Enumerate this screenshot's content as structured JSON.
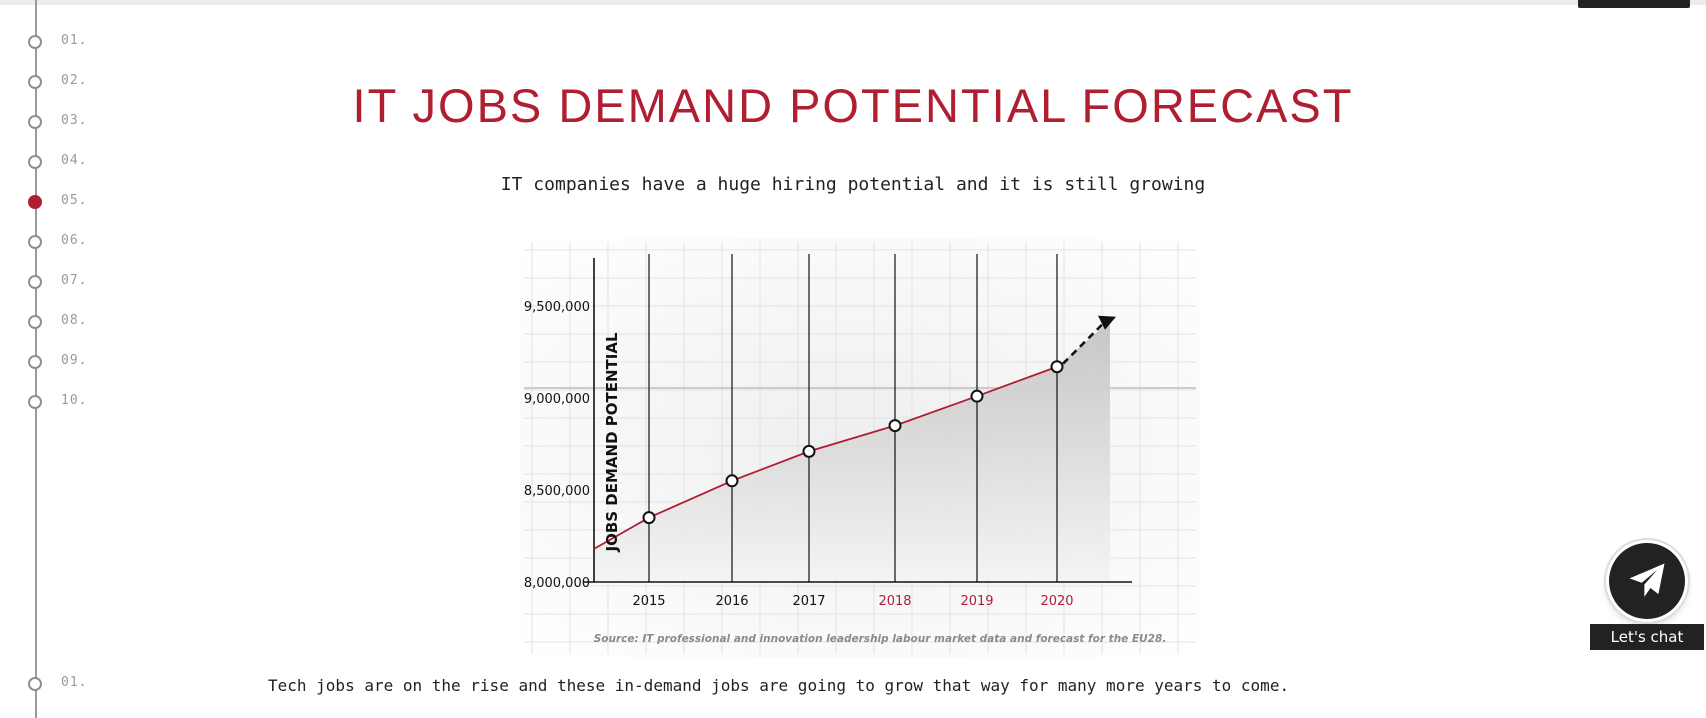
{
  "nav": {
    "items": [
      {
        "label": "01.",
        "active": false
      },
      {
        "label": "02.",
        "active": false
      },
      {
        "label": "03.",
        "active": false
      },
      {
        "label": "04.",
        "active": false
      },
      {
        "label": "05.",
        "active": true
      },
      {
        "label": "06.",
        "active": false
      },
      {
        "label": "07.",
        "active": false
      },
      {
        "label": "08.",
        "active": false
      },
      {
        "label": "09.",
        "active": false
      },
      {
        "label": "10.",
        "active": false
      }
    ],
    "next_section_label": "01."
  },
  "title": "IT JOBS DEMAND POTENTIAL FORECAST",
  "subtitle": "IT companies have a huge hiring potential and it is still growing",
  "body_text": "Tech jobs are on the rise and these in-demand jobs are going to grow that way for many more years to come.",
  "chat": {
    "label": "Let's chat",
    "icon": "paper-plane-icon"
  },
  "colors": {
    "accent": "#b01e32",
    "dark": "#222222",
    "muted": "#9a9a9a"
  },
  "chart_data": {
    "type": "line",
    "ylabel": "JOBS DEMAND POTENTIAL",
    "source": "Source: IT professional and innovation leadership labour market data and forecast for the EU28.",
    "ylim": [
      8000000,
      9500000
    ],
    "yticks": [
      "8,000,000",
      "8,500,000",
      "9,000,000",
      "9,500,000"
    ],
    "x_labels": [
      "2015",
      "2016",
      "2017",
      "2018",
      "2019",
      "2020"
    ],
    "forecast_labels": [
      "2018",
      "2019",
      "2020"
    ],
    "series": [
      {
        "x": [
          2015,
          2016,
          2017,
          2018,
          2019,
          2020
        ],
        "values": [
          8350000,
          8550000,
          8710000,
          8850000,
          9010000,
          9170000
        ]
      }
    ],
    "trend_continues": true,
    "grid": true
  }
}
